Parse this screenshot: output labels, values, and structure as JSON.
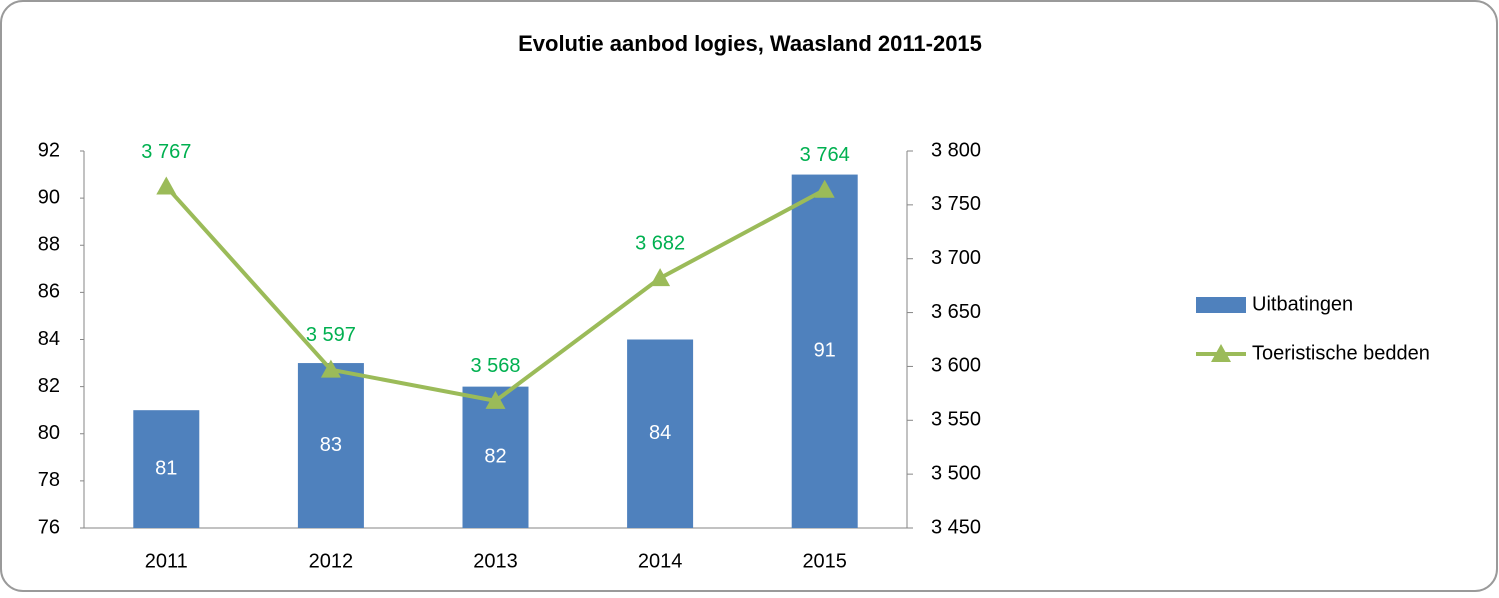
{
  "chart_data": {
    "type": "bar",
    "title": "Evolutie aanbod logies, Waasland 2011-2015",
    "categories": [
      "2011",
      "2012",
      "2013",
      "2014",
      "2015"
    ],
    "series": [
      {
        "name": "Uitbatingen",
        "type": "bar",
        "color": "#4f81bd",
        "values": [
          81,
          83,
          82,
          84,
          91
        ]
      },
      {
        "name": "Toeristische bedden",
        "type": "line",
        "axis": "y2",
        "color": "#9bbb59",
        "label_color": "#00b050",
        "values": [
          3767,
          3597,
          3568,
          3682,
          3764
        ],
        "value_labels": [
          "3 767",
          "3 597",
          "3 568",
          "3 682",
          "3 764"
        ]
      }
    ],
    "ylim": [
      76,
      92
    ],
    "yticks": [
      76,
      78,
      80,
      82,
      84,
      86,
      88,
      90,
      92
    ],
    "y2lim": [
      3450,
      3800
    ],
    "y2ticks": [
      {
        "value": 3450,
        "label": "3 450"
      },
      {
        "value": 3500,
        "label": "3 500"
      },
      {
        "value": 3550,
        "label": "3 550"
      },
      {
        "value": 3600,
        "label": "3 600"
      },
      {
        "value": 3650,
        "label": "3 650"
      },
      {
        "value": 3700,
        "label": "3 700"
      },
      {
        "value": 3750,
        "label": "3 750"
      },
      {
        "value": 3800,
        "label": "3 800"
      }
    ],
    "legend": "right"
  }
}
